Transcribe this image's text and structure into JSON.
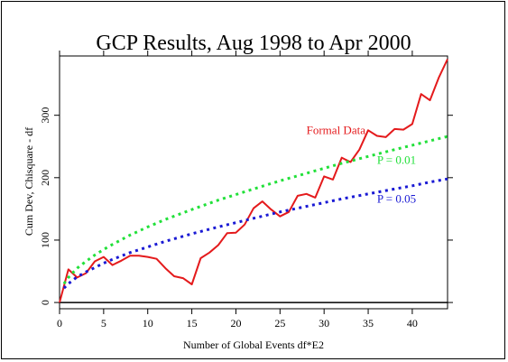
{
  "chart_data": {
    "type": "line",
    "title": "GCP Results, Aug 1998 to Apr 2000",
    "xlabel": "Number of Global Events    df*E2",
    "ylabel": "Cum Dev, Chisquare - df",
    "xlim": [
      0,
      44
    ],
    "ylim": [
      -10,
      395
    ],
    "x_ticks": [
      0,
      5,
      10,
      15,
      20,
      25,
      30,
      35,
      40
    ],
    "y_ticks": [
      0,
      100,
      200,
      300
    ],
    "grid": false,
    "series": [
      {
        "name": "Formal Data",
        "color": "#e41a1c",
        "style": "solid",
        "x": [
          0,
          1,
          2,
          3,
          4,
          5,
          6,
          7,
          8,
          9,
          10,
          11,
          12,
          13,
          14,
          15,
          16,
          17,
          18,
          19,
          20,
          21,
          22,
          23,
          24,
          25,
          26,
          27,
          28,
          29,
          30,
          31,
          32,
          33,
          34,
          35,
          36,
          37,
          38,
          39,
          40,
          41,
          42,
          43,
          44
        ],
        "y": [
          0,
          53,
          40,
          47,
          66,
          73,
          60,
          67,
          75,
          75,
          73,
          70,
          55,
          42,
          39,
          29,
          71,
          80,
          92,
          111,
          112,
          125,
          151,
          162,
          149,
          138,
          145,
          171,
          174,
          168,
          202,
          197,
          232,
          225,
          245,
          276,
          267,
          265,
          278,
          277,
          286,
          334,
          324,
          360,
          390
        ]
      },
      {
        "name": "P = 0.01",
        "color": "#22e03a",
        "style": "dotted",
        "x": [
          0.5,
          1,
          2,
          3,
          4,
          5,
          6,
          8,
          10,
          12,
          15,
          18,
          20,
          22,
          25,
          28,
          30,
          32,
          35,
          38,
          40,
          42,
          44
        ],
        "y": [
          30,
          40,
          55,
          66,
          76,
          85,
          93,
          108,
          121,
          133,
          149,
          164,
          173,
          182,
          195,
          207,
          215,
          223,
          234,
          245,
          252,
          259,
          266
        ]
      },
      {
        "name": "P = 0.05",
        "color": "#1a1ad4",
        "style": "dotted",
        "x": [
          0.5,
          1,
          2,
          3,
          4,
          5,
          6,
          8,
          10,
          12,
          15,
          18,
          20,
          22,
          25,
          28,
          30,
          32,
          35,
          38,
          40,
          42,
          44
        ],
        "y": [
          23,
          30,
          41,
          49,
          56,
          63,
          69,
          80,
          89,
          98,
          110,
          121,
          128,
          135,
          145,
          154,
          160,
          166,
          174,
          182,
          187,
          193,
          198
        ]
      }
    ],
    "annotations": [
      {
        "text": "Formal Data",
        "color": "#e41a1c",
        "x": 28,
        "y": 270
      },
      {
        "text": "P = 0.01",
        "color": "#22e03a",
        "x": 36,
        "y": 222
      },
      {
        "text": "P = 0.05",
        "color": "#1a1ad4",
        "x": 36,
        "y": 160
      }
    ]
  }
}
